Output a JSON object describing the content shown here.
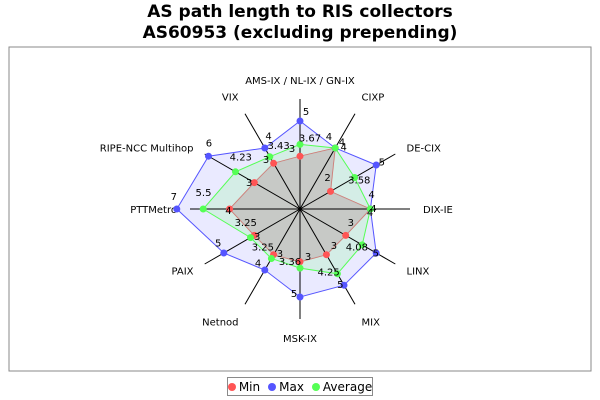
{
  "chart_data": {
    "type": "radar",
    "title": "AS path length to RIS collectors",
    "subtitle": "AS60953 (excluding prepending)",
    "categories": [
      "AMS-IX / NL-IX / GN-IX",
      "CIXP",
      "DE-CIX",
      "DIX-IE",
      "LINX",
      "MIX",
      "MSK-IX",
      "Netnod",
      "PAIX",
      "PTTMetro",
      "RIPE-NCC Multihop",
      "VIX"
    ],
    "series": [
      {
        "name": "Min",
        "color": "#ff5555",
        "values": [
          3,
          4,
          2,
          4,
          3,
          3,
          3,
          3,
          3,
          4,
          3,
          3
        ],
        "labels": [
          "3",
          "4",
          "2",
          "4",
          "3",
          "3",
          "3",
          "3",
          "3",
          "4",
          "3",
          "3"
        ]
      },
      {
        "name": "Max",
        "color": "#5555ff",
        "values": [
          5,
          4,
          5,
          4,
          5,
          5,
          5,
          4,
          5,
          7,
          6,
          4
        ],
        "labels": [
          "5",
          "4",
          "5",
          "4",
          "5",
          "5",
          "5",
          "4",
          "5",
          "7",
          "6",
          "4"
        ]
      },
      {
        "name": "Average",
        "color": "#55ff55",
        "values": [
          3.67,
          4,
          3.58,
          4,
          4.08,
          4.25,
          3.36,
          3.25,
          3.25,
          5.5,
          4.23,
          3.43
        ],
        "labels": [
          "3.67",
          "4",
          "3.58",
          "4",
          "4.08",
          "4.25",
          "3.36",
          "3.25",
          "3.25",
          "5.5",
          "4.23",
          "3.43"
        ]
      }
    ],
    "rmax": 7,
    "legend_position": "bottom"
  }
}
